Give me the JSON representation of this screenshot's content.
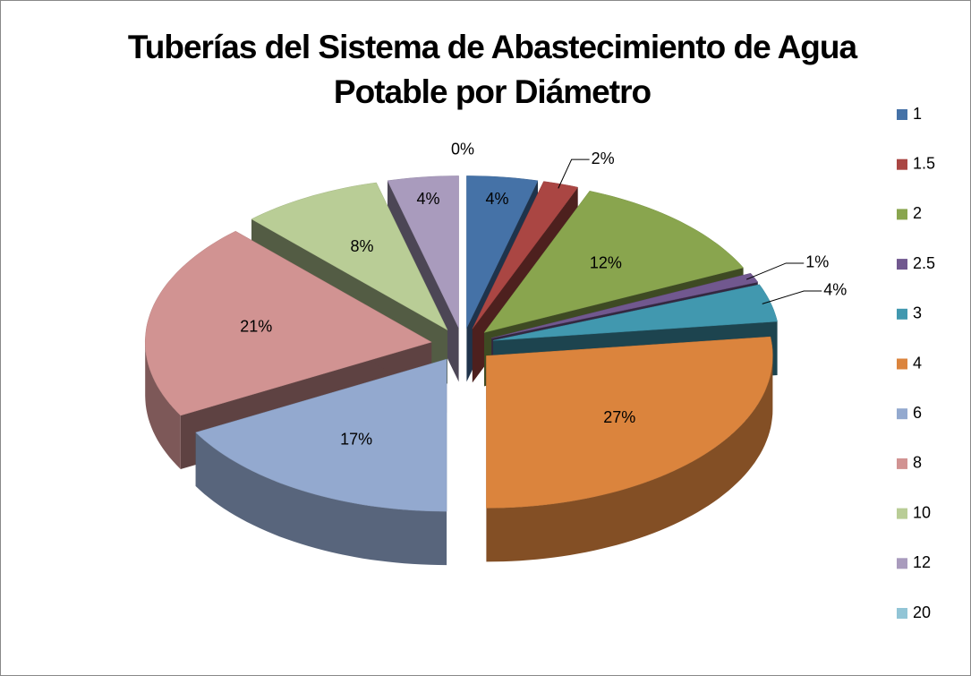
{
  "chart_data": {
    "type": "pie3d",
    "title": "Tuberías del Sistema de Abastecimiento de Agua Potable por Diámetro",
    "categories": [
      "1",
      "1.5",
      "2",
      "2.5",
      "3",
      "4",
      "6",
      "8",
      "10",
      "12",
      "20"
    ],
    "values": [
      4,
      2,
      12,
      1,
      4,
      27,
      17,
      21,
      8,
      4,
      0
    ],
    "value_labels": [
      "4%",
      "2%",
      "12%",
      "1%",
      "4%",
      "27%",
      "17%",
      "21%",
      "8%",
      "4%",
      "0%"
    ],
    "colors": [
      "#4572a7",
      "#aa4643",
      "#89a54e",
      "#71588f",
      "#4198af",
      "#db843d",
      "#93a9cf",
      "#d19392",
      "#b9cd96",
      "#a99bbd",
      "#92c5d6"
    ],
    "legend": "right"
  }
}
